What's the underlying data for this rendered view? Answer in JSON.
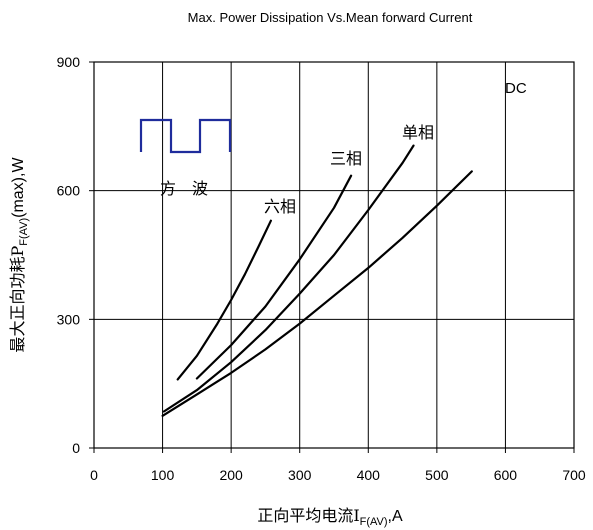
{
  "chart_data": {
    "type": "line",
    "title": "Max. Power Dissipation Vs.Mean forward Current",
    "xlabel": {
      "main": "正向平均电流I",
      "sub": "F(AV)",
      "suffix": ",A"
    },
    "ylabel": {
      "main": "最大正向功耗P",
      "sub": "F(AV)",
      "suffix": "(max),W"
    },
    "xlim": [
      0,
      700
    ],
    "ylim": [
      0,
      900
    ],
    "xticks": [
      "0",
      "100",
      "200",
      "300",
      "400",
      "500",
      "600",
      "700"
    ],
    "yticks": [
      "0",
      "300",
      "600",
      "900"
    ],
    "grid": true,
    "waveform_label": "方　波",
    "series": [
      {
        "name": "六相",
        "x": [
          122,
          150,
          180,
          200,
          220,
          240,
          258
        ],
        "y": [
          160,
          215,
          290,
          345,
          405,
          470,
          530
        ]
      },
      {
        "name": "三相",
        "x": [
          150,
          200,
          250,
          300,
          350,
          375
        ],
        "y": [
          162,
          240,
          330,
          440,
          560,
          635
        ]
      },
      {
        "name": "单相",
        "x": [
          102,
          150,
          200,
          250,
          300,
          350,
          400,
          450,
          466
        ],
        "y": [
          85,
          135,
          200,
          275,
          360,
          450,
          555,
          665,
          705
        ]
      },
      {
        "name": "DC",
        "x": [
          100,
          150,
          200,
          250,
          300,
          350,
          400,
          450,
          500,
          551
        ],
        "y": [
          75,
          125,
          175,
          230,
          290,
          355,
          420,
          490,
          565,
          645
        ]
      }
    ]
  }
}
